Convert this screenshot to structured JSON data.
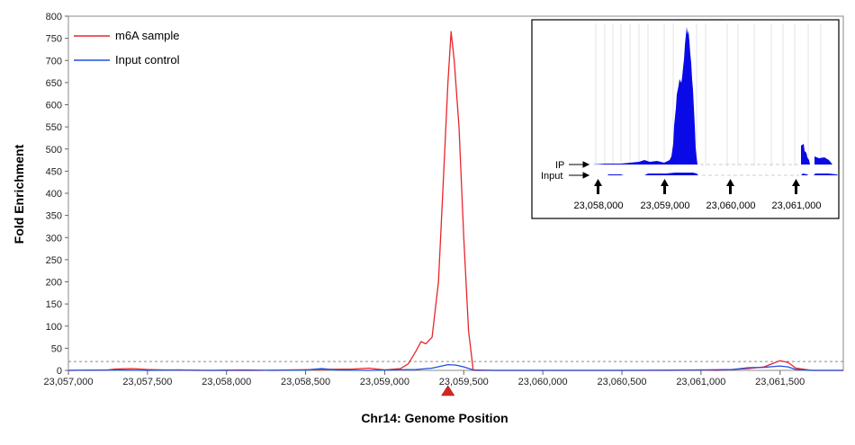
{
  "chart_data": {
    "type": "line",
    "xlabel": "Chr14: Genome Position",
    "ylabel": "Fold Enrichment",
    "xlim": [
      23057000,
      23061900
    ],
    "ylim": [
      0,
      800
    ],
    "x_ticks": [
      23057000,
      23057500,
      23058000,
      23058500,
      23059000,
      23059500,
      23060000,
      23060500,
      23061000,
      23061500
    ],
    "x_tick_labels": [
      "23,057,000",
      "23,057,500",
      "23,058,000",
      "23,058,500",
      "23,059,000",
      "23,059,500",
      "23,060,000",
      "23,060,500",
      "23,061,000",
      "23,061,500"
    ],
    "y_ticks": [
      0,
      50,
      100,
      150,
      200,
      250,
      300,
      350,
      400,
      450,
      500,
      550,
      600,
      650,
      700,
      750,
      800
    ],
    "y_tick_labels": [
      "0",
      "50",
      "100",
      "150",
      "200",
      "250",
      "300",
      "350",
      "400",
      "450",
      "500",
      "550",
      "600",
      "650",
      "700",
      "750",
      "800"
    ],
    "threshold": 20,
    "legend_position": "top-left",
    "marker_x": 23059400,
    "series": [
      {
        "name": "m6A sample",
        "color": "#e8262a",
        "points": [
          [
            23057000,
            0
          ],
          [
            23057250,
            1
          ],
          [
            23057300,
            3
          ],
          [
            23057400,
            4
          ],
          [
            23057500,
            2
          ],
          [
            23057600,
            1
          ],
          [
            23057700,
            1
          ],
          [
            23057800,
            0
          ],
          [
            23058000,
            0
          ],
          [
            23058200,
            0
          ],
          [
            23058400,
            1
          ],
          [
            23058600,
            2
          ],
          [
            23058800,
            3
          ],
          [
            23058900,
            5
          ],
          [
            23059000,
            1
          ],
          [
            23059100,
            4
          ],
          [
            23059150,
            15
          ],
          [
            23059200,
            45
          ],
          [
            23059230,
            65
          ],
          [
            23059260,
            60
          ],
          [
            23059300,
            75
          ],
          [
            23059340,
            200
          ],
          [
            23059370,
            420
          ],
          [
            23059400,
            650
          ],
          [
            23059420,
            765
          ],
          [
            23059440,
            700
          ],
          [
            23059470,
            550
          ],
          [
            23059500,
            300
          ],
          [
            23059530,
            90
          ],
          [
            23059560,
            0
          ],
          [
            23059700,
            0
          ],
          [
            23060000,
            0
          ],
          [
            23060500,
            0
          ],
          [
            23060800,
            0
          ],
          [
            23061000,
            1
          ],
          [
            23061100,
            0
          ],
          [
            23061300,
            4
          ],
          [
            23061400,
            8
          ],
          [
            23061450,
            15
          ],
          [
            23061500,
            22
          ],
          [
            23061550,
            18
          ],
          [
            23061600,
            5
          ],
          [
            23061700,
            0
          ],
          [
            23061900,
            0
          ]
        ]
      },
      {
        "name": "Input control",
        "color": "#1f4fe0",
        "points": [
          [
            23057000,
            0
          ],
          [
            23057300,
            1
          ],
          [
            23057500,
            0
          ],
          [
            23057700,
            1
          ],
          [
            23057900,
            0
          ],
          [
            23058100,
            1
          ],
          [
            23058300,
            0
          ],
          [
            23058500,
            1
          ],
          [
            23058600,
            4
          ],
          [
            23058700,
            1
          ],
          [
            23058900,
            0
          ],
          [
            23059000,
            1
          ],
          [
            23059200,
            2
          ],
          [
            23059300,
            5
          ],
          [
            23059400,
            13
          ],
          [
            23059450,
            12
          ],
          [
            23059500,
            8
          ],
          [
            23059560,
            1
          ],
          [
            23059700,
            0
          ],
          [
            23060000,
            0
          ],
          [
            23060500,
            0
          ],
          [
            23061000,
            1
          ],
          [
            23061200,
            2
          ],
          [
            23061300,
            6
          ],
          [
            23061400,
            7
          ],
          [
            23061500,
            10
          ],
          [
            23061550,
            8
          ],
          [
            23061600,
            2
          ],
          [
            23061700,
            0
          ],
          [
            23061900,
            0
          ]
        ]
      }
    ],
    "inset": {
      "track_labels": [
        "IP",
        "Input"
      ],
      "arrow_labels": [
        "23,058,000",
        "23,059,000",
        "23,060,000",
        "23,061,000"
      ]
    }
  }
}
